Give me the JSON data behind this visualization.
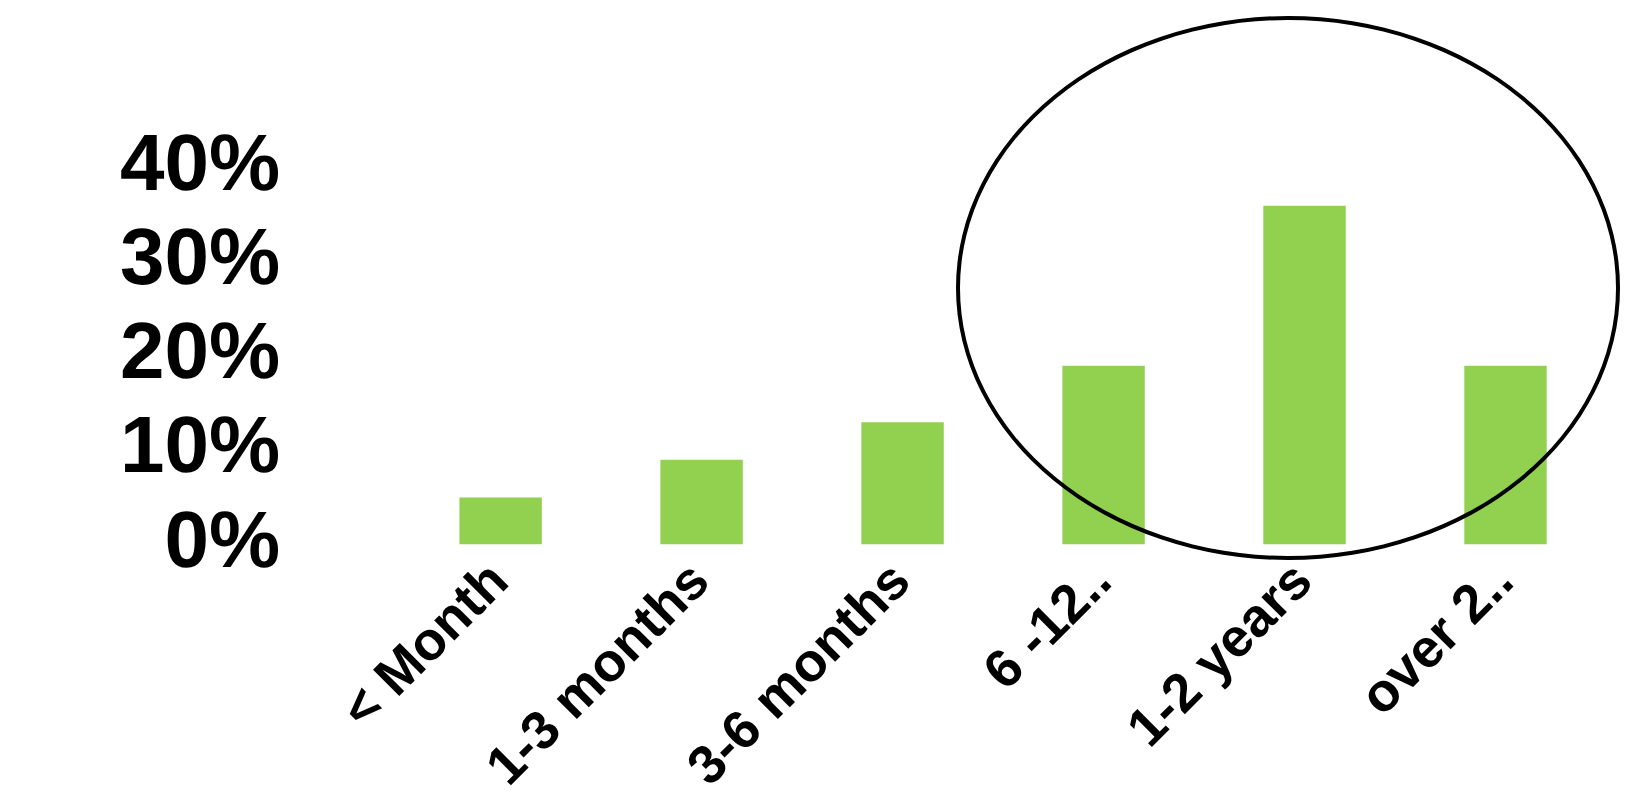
{
  "chart_data": {
    "type": "bar",
    "categories": [
      "< Month",
      "1-3 months",
      "3-6 months",
      "6 -12..",
      "1-2 years",
      "over 2.."
    ],
    "values": [
      5,
      9,
      13,
      19,
      36,
      19
    ],
    "color": "#92d050",
    "ylim": [
      0,
      40
    ],
    "yticks": [
      {
        "value": 0,
        "label": "0%"
      },
      {
        "value": 10,
        "label": "10%"
      },
      {
        "value": 20,
        "label": "20%"
      },
      {
        "value": 30,
        "label": "30%"
      },
      {
        "value": 40,
        "label": "40%"
      }
    ],
    "grid": false,
    "legend": false
  }
}
